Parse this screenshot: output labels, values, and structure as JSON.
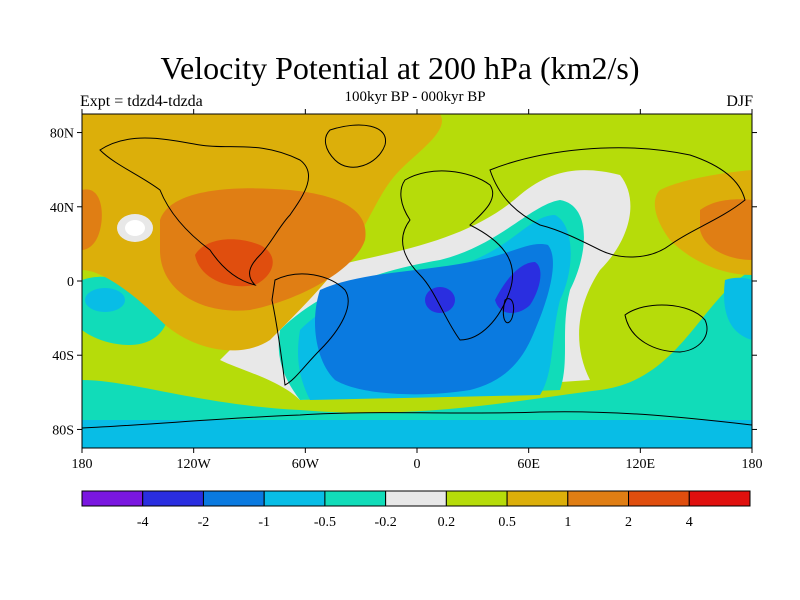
{
  "header": {
    "title": "Velocity Potential at 200 hPa (km2/s)",
    "subtitle": "100kyr BP - 000kyr BP",
    "left_label": "Expt = tdzd4-tdzda",
    "right_label": "DJF"
  },
  "map": {
    "projection": "cylindrical equidistant",
    "lon_range": [
      -180,
      180
    ],
    "lat_range": [
      -90,
      90
    ],
    "x_ticks": [
      {
        "value": -180,
        "label": "180"
      },
      {
        "value": -120,
        "label": "120W"
      },
      {
        "value": -60,
        "label": "60W"
      },
      {
        "value": 0,
        "label": "0"
      },
      {
        "value": 60,
        "label": "60E"
      },
      {
        "value": 120,
        "label": "120E"
      },
      {
        "value": 180,
        "label": "180"
      }
    ],
    "y_ticks": [
      {
        "value": 80,
        "label": "80N"
      },
      {
        "value": 40,
        "label": "40N"
      },
      {
        "value": 0,
        "label": "0"
      },
      {
        "value": -40,
        "label": "40S"
      },
      {
        "value": -80,
        "label": "80S"
      }
    ]
  },
  "colorbar": {
    "colors": [
      "#7a17e0",
      "#2a2ee0",
      "#0a7ae0",
      "#08bde6",
      "#11dcb9",
      "#e8e8e8",
      "#b6dc0a",
      "#dcaf0a",
      "#e07e14",
      "#e04e0e",
      "#e0100e"
    ],
    "labels": [
      "-4",
      "-2",
      "-1",
      "-0.5",
      "-0.2",
      "0.2",
      "0.5",
      "1",
      "2",
      "4"
    ]
  }
}
